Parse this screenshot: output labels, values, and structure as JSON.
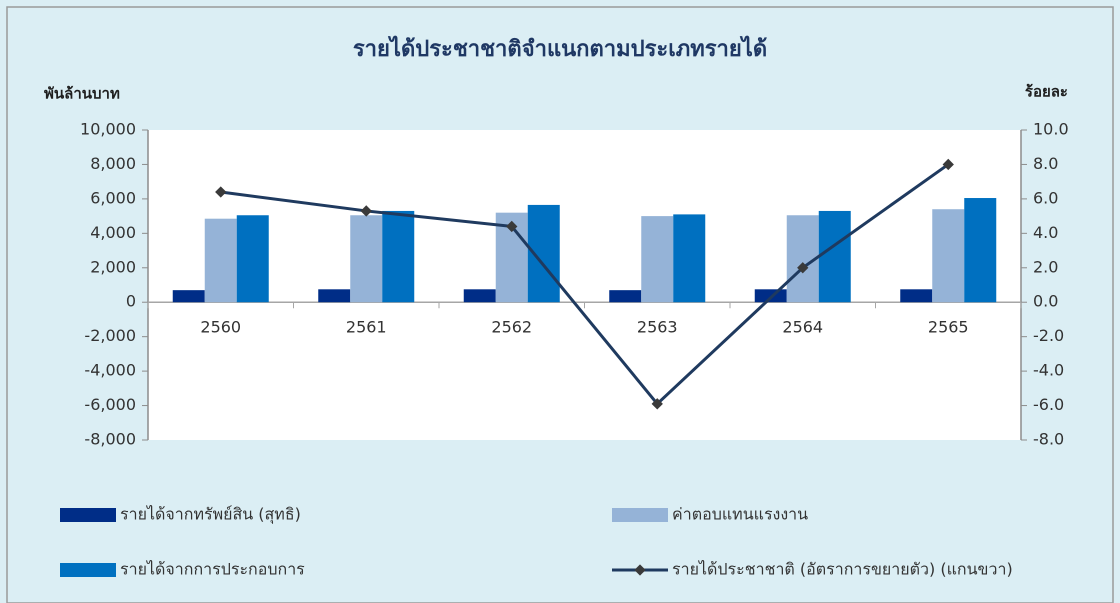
{
  "chart_data": {
    "type": "bar",
    "title": "รายได้ประชาชาติจำแนกตามประเภทรายได้",
    "y_label": "พันล้านบาท",
    "y2_label": "ร้อยละ",
    "categories": [
      "2560",
      "2561",
      "2562",
      "2563",
      "2564",
      "2565"
    ],
    "series": [
      {
        "name": "รายได้จากทรัพย์สิน (สุทธิ)",
        "color": "#002d87",
        "values": [
          700,
          750,
          750,
          700,
          750,
          750
        ]
      },
      {
        "name": "ค่าตอบแทนแรงงาน",
        "color": "#95b3d7",
        "values": [
          4850,
          5050,
          5200,
          5000,
          5050,
          5400
        ]
      },
      {
        "name": "รายได้จากการประกอบการ",
        "color": "#0070c0",
        "values": [
          5050,
          5300,
          5650,
          5100,
          5300,
          6050
        ]
      },
      {
        "name": "รายได้ประชาชาติ (อัตราการขยายตัว) (แกนขวา)",
        "color": "#1f3a5f",
        "type": "line",
        "axis": "y2",
        "values": [
          6.4,
          5.3,
          4.4,
          -5.9,
          2.0,
          8.0
        ]
      }
    ],
    "ylim": [
      -8000,
      10000
    ],
    "yticks": [
      {
        "value": -8000,
        "label": "-8,000"
      },
      {
        "value": -6000,
        "label": "-6,000"
      },
      {
        "value": -4000,
        "label": "-4,000"
      },
      {
        "value": -2000,
        "label": "-2,000"
      },
      0,
      {
        "value": 2000,
        "label": "2,000"
      },
      {
        "value": 4000,
        "label": "4,000"
      },
      {
        "value": 6000,
        "label": "6,000"
      },
      {
        "value": 8000,
        "label": "8,000"
      },
      {
        "value": 10000,
        "label": "10,000"
      }
    ],
    "y2lim": [
      -8,
      10
    ],
    "y2ticks": [
      {
        "value": -8,
        "label": "-8.0"
      },
      {
        "value": -6,
        "label": "-6.0"
      },
      {
        "value": -4,
        "label": "-4.0"
      },
      {
        "value": -2,
        "label": "-2.0"
      },
      {
        "value": 0,
        "label": "0.0"
      },
      {
        "value": 2,
        "label": "2.0"
      },
      {
        "value": 4,
        "label": "4.0"
      },
      {
        "value": 6,
        "label": "6.0"
      },
      {
        "value": 8,
        "label": "8.0"
      },
      {
        "value": 10,
        "label": "10.0"
      }
    ],
    "grid": false,
    "legend": "bottom"
  }
}
